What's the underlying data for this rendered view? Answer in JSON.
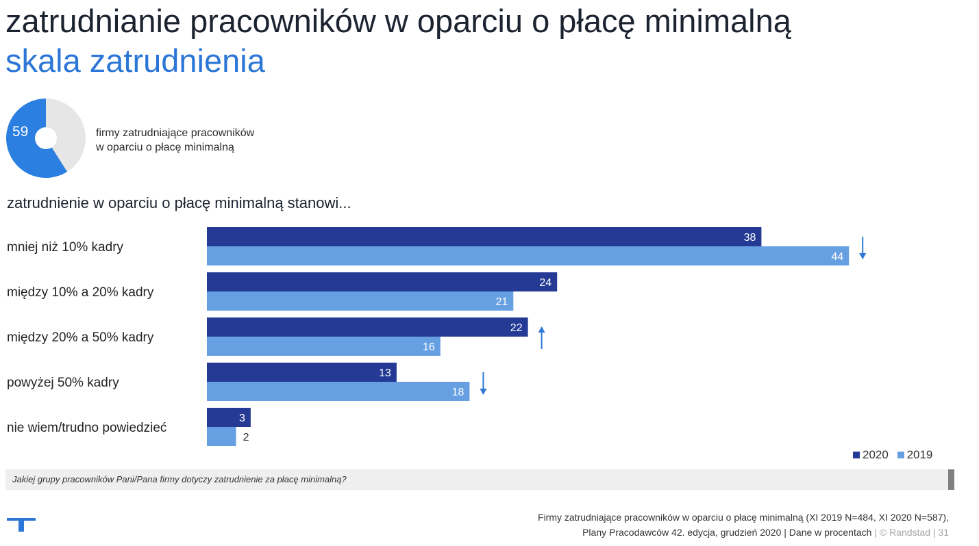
{
  "header": {
    "title": "zatrudnianie pracowników w oparciu o płacę minimalną",
    "subtitle": "skala zatrudnienia"
  },
  "kpi": {
    "value": "59",
    "caption_line1": "firmy zatrudniające pracowników",
    "caption_line2": "w oparciu o płacę minimalną",
    "fraction": 0.59,
    "colors": {
      "fill": "#2b7fe0",
      "rest": "#e6e6e6"
    }
  },
  "chart_heading": "zatrudnienie w oparciu o płacę minimalną stanowi...",
  "chart_data": {
    "type": "bar",
    "orientation": "horizontal",
    "categories": [
      "mniej niż 10% kadry",
      "między 10% a 20% kadry",
      "między 20% a 50% kadry",
      "powyżej 50% kadry",
      "nie wiem/trudno powiedzieć"
    ],
    "series": [
      {
        "name": "2020",
        "values": [
          38,
          24,
          22,
          13,
          3
        ],
        "color": "#243a94"
      },
      {
        "name": "2019",
        "values": [
          44,
          21,
          16,
          18,
          2
        ],
        "color": "#66a0e3"
      }
    ],
    "changes": [
      "down",
      "",
      "up",
      "down",
      ""
    ],
    "arrow_color": "#2b76d6",
    "xlim": [
      0,
      44
    ],
    "grid": false,
    "legend_position": "bottom-right"
  },
  "question": "Jakiej grupy pracowników Pani/Pana firmy dotyczy zatrudnienie za płacę minimalną?",
  "footer": {
    "line1": "Firmy zatrudniające pracowników w oparciu o płacę minimalną (XI 2019 N=484, XI 2020 N=587),",
    "line2": "Plany Pracodawców 42. edycja, grudzień 2020  | Dane w procentach",
    "sep1": "|",
    "brand": "© Randstad",
    "sep2": "|",
    "page": "31",
    "logo_icon": "randstad-logo-icon"
  }
}
